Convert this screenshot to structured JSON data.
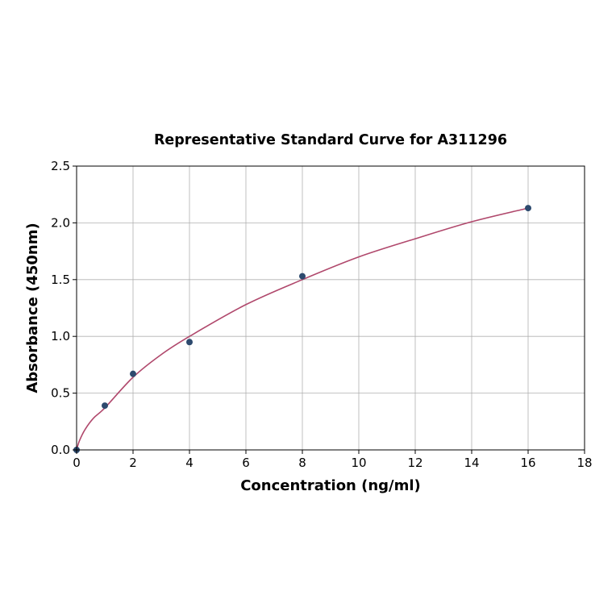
{
  "chart_data": {
    "type": "scatter",
    "title": "Representative Standard Curve for A311296",
    "xlabel": "Concentration (ng/ml)",
    "ylabel": "Absorbance (450nm)",
    "xlim": [
      0,
      18
    ],
    "ylim": [
      0,
      2.5
    ],
    "xticks": [
      "0",
      "2",
      "4",
      "6",
      "8",
      "10",
      "12",
      "14",
      "16",
      "18"
    ],
    "yticks": [
      "0.0",
      "0.5",
      "1.0",
      "1.5",
      "2.0",
      "2.5"
    ],
    "grid": true,
    "points": {
      "x": [
        0,
        1,
        2,
        4,
        8,
        16
      ],
      "y": [
        0.0,
        0.39,
        0.67,
        0.95,
        1.53,
        2.13
      ]
    },
    "fit_curve": {
      "x": [
        0,
        0.1,
        0.3,
        0.6,
        1,
        2,
        3,
        4,
        6,
        8,
        10,
        12,
        14,
        16
      ],
      "y": [
        0,
        0.08,
        0.18,
        0.28,
        0.37,
        0.64,
        0.84,
        1.0,
        1.28,
        1.5,
        1.7,
        1.86,
        2.01,
        2.13
      ]
    },
    "colors": {
      "points": "#2d4a6e",
      "curve": "#b0486c",
      "grid": "#b0b0b0"
    }
  }
}
